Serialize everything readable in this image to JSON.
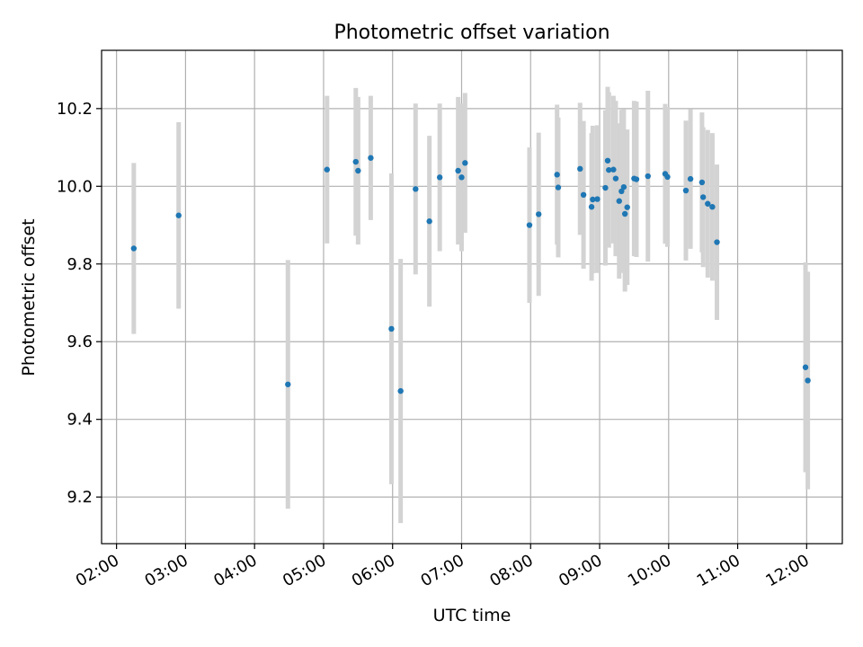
{
  "chart_data": {
    "type": "scatter",
    "title": "Photometric offset variation",
    "xlabel": "UTC time",
    "ylabel": "Photometric offset",
    "x_tick_labels": [
      "02:00",
      "03:00",
      "04:00",
      "05:00",
      "06:00",
      "07:00",
      "08:00",
      "09:00",
      "10:00",
      "11:00",
      "12:00"
    ],
    "y_tick_labels": [
      "9.2",
      "9.4",
      "9.6",
      "9.8",
      "10.0",
      "10.2"
    ],
    "y_ticks": [
      9.2,
      9.4,
      9.6,
      9.8,
      10.0,
      10.2
    ],
    "xlim": [
      "01:47",
      "12:31"
    ],
    "ylim": [
      9.08,
      10.35
    ],
    "grid": true,
    "colors": {
      "point": "#1f77b4",
      "errorbar": "#d3d3d3",
      "grid": "#b0b0b0"
    },
    "points": [
      {
        "x": "02:15",
        "y": 9.84,
        "err": 0.22
      },
      {
        "x": "02:54",
        "y": 9.925,
        "err": 0.24
      },
      {
        "x": "04:29",
        "y": 9.49,
        "err": 0.32
      },
      {
        "x": "05:03",
        "y": 10.043,
        "err": 0.19
      },
      {
        "x": "05:28",
        "y": 10.063,
        "err": 0.19
      },
      {
        "x": "05:30",
        "y": 10.04,
        "err": 0.19
      },
      {
        "x": "05:41",
        "y": 10.073,
        "err": 0.16
      },
      {
        "x": "05:59",
        "y": 9.633,
        "err": 0.4
      },
      {
        "x": "06:07",
        "y": 9.473,
        "err": 0.34
      },
      {
        "x": "06:20",
        "y": 9.993,
        "err": 0.22
      },
      {
        "x": "06:32",
        "y": 9.91,
        "err": 0.22
      },
      {
        "x": "06:41",
        "y": 10.023,
        "err": 0.19
      },
      {
        "x": "06:57",
        "y": 10.04,
        "err": 0.19
      },
      {
        "x": "07:00",
        "y": 10.023,
        "err": 0.19
      },
      {
        "x": "07:03",
        "y": 10.06,
        "err": 0.18
      },
      {
        "x": "07:59",
        "y": 9.9,
        "err": 0.2
      },
      {
        "x": "08:07",
        "y": 9.928,
        "err": 0.21
      },
      {
        "x": "08:23",
        "y": 10.03,
        "err": 0.18
      },
      {
        "x": "08:24",
        "y": 9.997,
        "err": 0.18
      },
      {
        "x": "08:43",
        "y": 10.045,
        "err": 0.17
      },
      {
        "x": "08:46",
        "y": 9.978,
        "err": 0.19
      },
      {
        "x": "08:53",
        "y": 9.947,
        "err": 0.19
      },
      {
        "x": "08:54",
        "y": 9.966,
        "err": 0.19
      },
      {
        "x": "08:58",
        "y": 9.967,
        "err": 0.19
      },
      {
        "x": "09:05",
        "y": 9.996,
        "err": 0.2
      },
      {
        "x": "09:07",
        "y": 10.066,
        "err": 0.19
      },
      {
        "x": "09:08",
        "y": 10.042,
        "err": 0.2
      },
      {
        "x": "09:12",
        "y": 10.043,
        "err": 0.19
      },
      {
        "x": "09:14",
        "y": 10.02,
        "err": 0.2
      },
      {
        "x": "09:17",
        "y": 9.962,
        "err": 0.2
      },
      {
        "x": "09:19",
        "y": 9.987,
        "err": 0.21
      },
      {
        "x": "09:21",
        "y": 9.998,
        "err": 0.2
      },
      {
        "x": "09:22",
        "y": 9.929,
        "err": 0.2
      },
      {
        "x": "09:24",
        "y": 9.946,
        "err": 0.2
      },
      {
        "x": "09:30",
        "y": 10.02,
        "err": 0.2
      },
      {
        "x": "09:32",
        "y": 10.018,
        "err": 0.2
      },
      {
        "x": "09:42",
        "y": 10.026,
        "err": 0.22
      },
      {
        "x": "09:57",
        "y": 10.032,
        "err": 0.18
      },
      {
        "x": "09:59",
        "y": 10.024,
        "err": 0.18
      },
      {
        "x": "10:15",
        "y": 9.989,
        "err": 0.18
      },
      {
        "x": "10:19",
        "y": 10.019,
        "err": 0.18
      },
      {
        "x": "10:29",
        "y": 10.01,
        "err": 0.18
      },
      {
        "x": "10:30",
        "y": 9.972,
        "err": 0.18
      },
      {
        "x": "10:34",
        "y": 9.955,
        "err": 0.19
      },
      {
        "x": "10:38",
        "y": 9.947,
        "err": 0.19
      },
      {
        "x": "10:42",
        "y": 9.856,
        "err": 0.2
      },
      {
        "x": "11:59",
        "y": 9.534,
        "err": 0.27
      },
      {
        "x": "12:01",
        "y": 9.5,
        "err": 0.28
      }
    ]
  }
}
